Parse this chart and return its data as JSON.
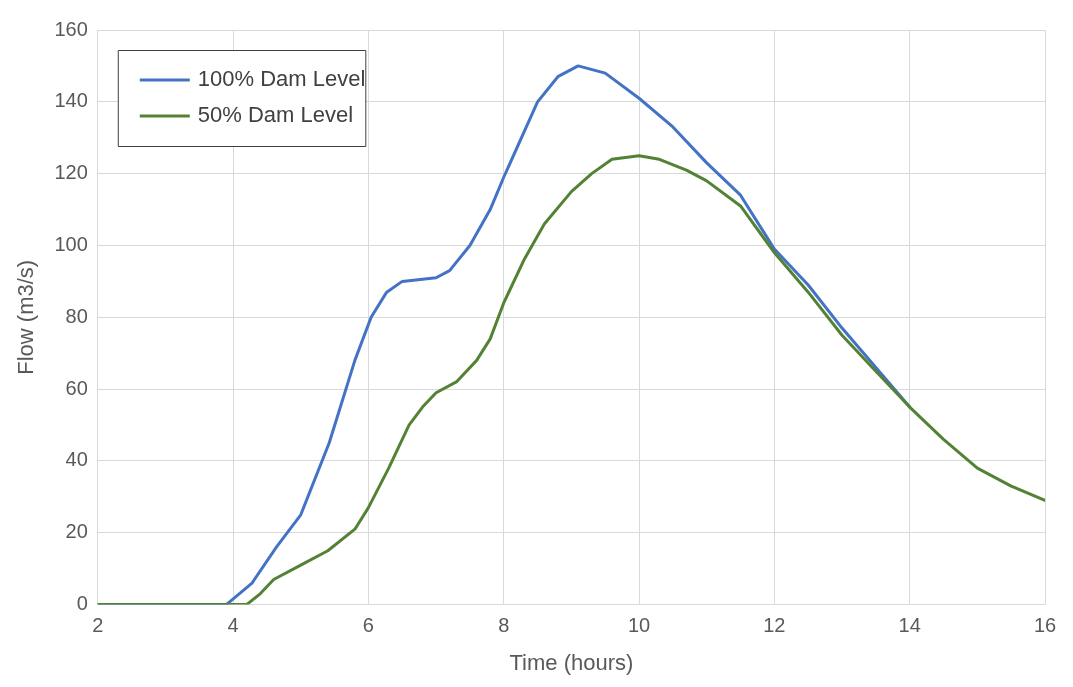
{
  "chart_data": {
    "type": "line",
    "xlabel": "Time (hours)",
    "ylabel": "Flow (m3/s)",
    "xlim": [
      2,
      16
    ],
    "xticks": [
      2,
      4,
      6,
      8,
      10,
      12,
      14,
      16
    ],
    "ylim": [
      0,
      160
    ],
    "yticks": [
      0,
      20,
      40,
      60,
      80,
      100,
      120,
      140,
      160
    ],
    "grid": true,
    "legend": "top left",
    "marker": "none",
    "line_style": "solid",
    "series": [
      {
        "name": "100% Dam Level",
        "color": "#4472c4",
        "x": [
          2,
          3.9,
          4.28,
          4.64,
          5.0,
          5.42,
          5.8,
          6.04,
          6.27,
          6.5,
          7.0,
          7.2,
          7.5,
          7.8,
          8.0,
          8.5,
          8.8,
          9.1,
          9.5,
          10,
          10.5,
          11,
          11.5,
          12,
          12.5,
          13,
          13.5,
          14
        ],
        "values": [
          0,
          0,
          6,
          16,
          25,
          45,
          68,
          80,
          87,
          90,
          91,
          93,
          100,
          110,
          119,
          140,
          147,
          150,
          148,
          141,
          133,
          123,
          114,
          99,
          89,
          77,
          66,
          55
        ]
      },
      {
        "name": "50% Dam Level",
        "color": "#548235",
        "x": [
          2,
          4.2,
          4.4,
          4.6,
          5.0,
          5.4,
          5.8,
          6.0,
          6.3,
          6.6,
          6.8,
          7.0,
          7.3,
          7.6,
          7.8,
          8.0,
          8.3,
          8.6,
          9.0,
          9.3,
          9.6,
          10.0,
          10.3,
          10.7,
          11,
          11.5,
          12,
          12.5,
          13,
          13.5,
          14,
          14.5,
          15,
          15.5,
          16
        ],
        "values": [
          0,
          0,
          3,
          7,
          11,
          15,
          21,
          27,
          38,
          50,
          55,
          59,
          62,
          68,
          74,
          84,
          96,
          106,
          115,
          120,
          124,
          125,
          124,
          121,
          118,
          111,
          98,
          87,
          75,
          65,
          55,
          46,
          38,
          33,
          29
        ]
      }
    ]
  }
}
